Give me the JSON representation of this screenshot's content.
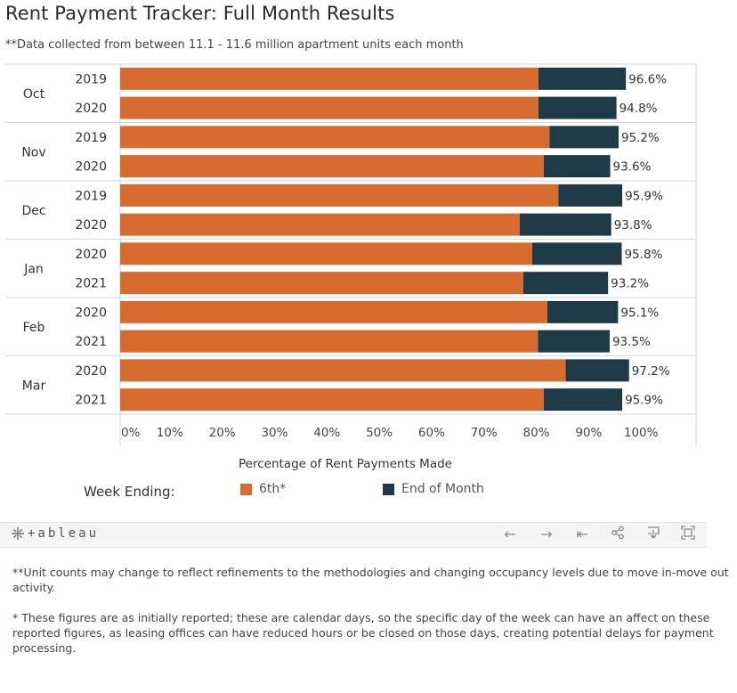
{
  "title": "Rent Payment Tracker: Full Month Results",
  "subtitle": "**Data collected from between 11.1 - 11.6 million apartment units each month",
  "chart_data": {
    "type": "bar",
    "orientation": "horizontal",
    "stacked": true,
    "groups": [
      {
        "month": "Oct",
        "rows": [
          {
            "year": "2019",
            "sixth": 79.9,
            "total": 96.6,
            "label": "96.6%"
          },
          {
            "year": "2020",
            "sixth": 79.9,
            "total": 94.8,
            "label": "94.8%"
          }
        ]
      },
      {
        "month": "Nov",
        "rows": [
          {
            "year": "2019",
            "sixth": 82.0,
            "total": 95.2,
            "label": "95.2%"
          },
          {
            "year": "2020",
            "sixth": 80.9,
            "total": 93.6,
            "label": "93.6%"
          }
        ]
      },
      {
        "month": "Dec",
        "rows": [
          {
            "year": "2019",
            "sixth": 83.7,
            "total": 95.9,
            "label": "95.9%"
          },
          {
            "year": "2020",
            "sixth": 76.3,
            "total": 93.8,
            "label": "93.8%"
          }
        ]
      },
      {
        "month": "Jan",
        "rows": [
          {
            "year": "2020",
            "sixth": 78.7,
            "total": 95.8,
            "label": "95.8%"
          },
          {
            "year": "2021",
            "sixth": 77.0,
            "total": 93.2,
            "label": "93.2%"
          }
        ]
      },
      {
        "month": "Feb",
        "rows": [
          {
            "year": "2020",
            "sixth": 81.6,
            "total": 95.1,
            "label": "95.1%"
          },
          {
            "year": "2021",
            "sixth": 79.8,
            "total": 93.5,
            "label": "93.5%"
          }
        ]
      },
      {
        "month": "Mar",
        "rows": [
          {
            "year": "2020",
            "sixth": 85.1,
            "total": 97.2,
            "label": "97.2%"
          },
          {
            "year": "2021",
            "sixth": 80.9,
            "total": 95.9,
            "label": "95.9%"
          }
        ]
      }
    ],
    "series": [
      {
        "name": "6th*",
        "color": "#d86b30"
      },
      {
        "name": "End of Month",
        "color": "#1e3a46"
      }
    ],
    "xlim": [
      0,
      110
    ],
    "xticks": [
      "0%",
      "10%",
      "20%",
      "30%",
      "40%",
      "50%",
      "60%",
      "70%",
      "80%",
      "90%",
      "100%"
    ],
    "xlabel": "Percentage of Rent Payments Made",
    "legend_title": "Week Ending:",
    "legend_position": "bottom"
  },
  "toolbar": {
    "logo_text": "+ableau",
    "icons": [
      "undo-icon",
      "redo-icon",
      "revert-icon",
      "share-icon",
      "download-icon",
      "fullscreen-icon"
    ],
    "undo": "←",
    "redo": "→",
    "revert": "⇤"
  },
  "footnotes": {
    "note1": "**Unit counts may change to reflect refinements to the methodologies and changing occupancy levels due to move in-move out activity.",
    "note2": "* These figures are as initially reported; these are calendar days, so the specific day of the week can have an affect on these reported figures, as leasing offices can have reduced hours or be closed on those days, creating potential delays for payment processing."
  }
}
